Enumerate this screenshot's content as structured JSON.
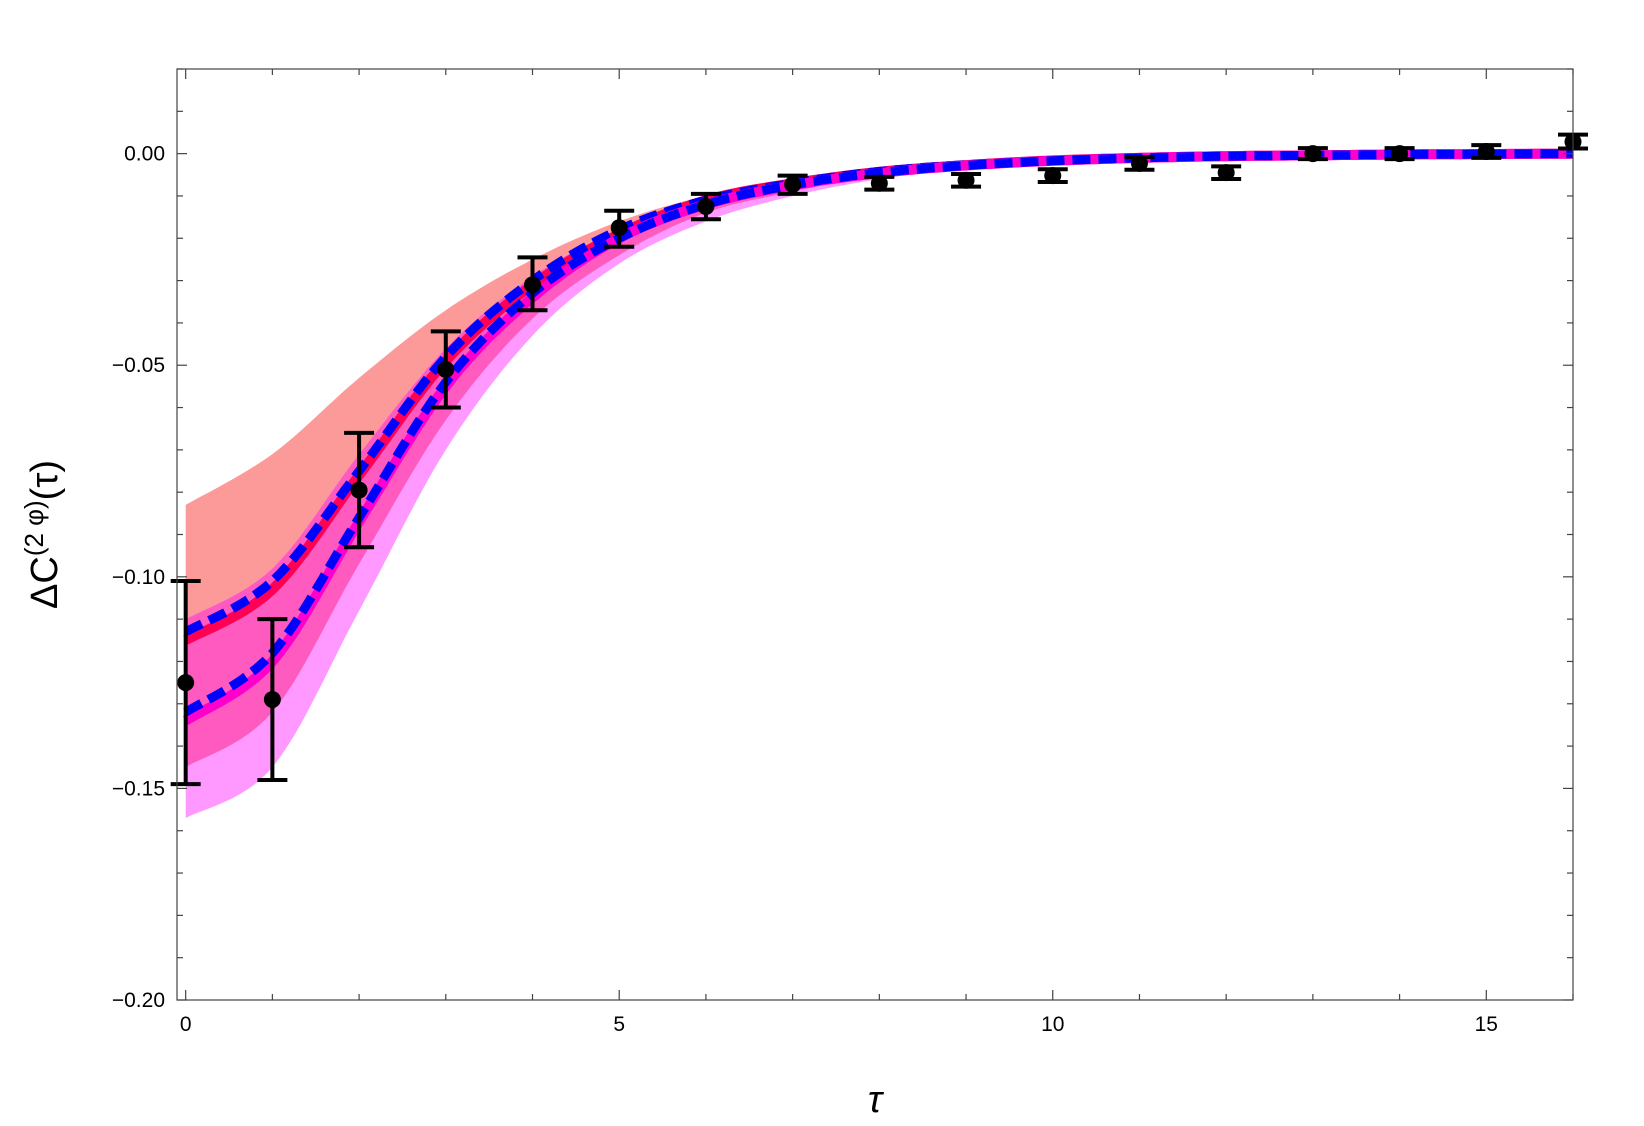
{
  "chart_data": {
    "type": "line",
    "title": "",
    "xlabel": "τ",
    "ylabel": "ΔC(2 φ)(τ)",
    "ylabel_parts": {
      "main": "ΔC",
      "sup": "(2 φ)",
      "tail": "(τ)"
    },
    "xlim": [
      -0.1,
      16
    ],
    "ylim": [
      -0.2,
      0.02
    ],
    "xticks": [
      0,
      5,
      10,
      15
    ],
    "xtick_labels": [
      "0",
      "5",
      "10",
      "15"
    ],
    "yticks": [
      0,
      -0.05,
      -0.1,
      -0.15,
      -0.2
    ],
    "ytick_labels": [
      "0.00",
      "-0.05",
      "-0.10",
      "-0.15",
      "-0.20"
    ],
    "grid": false,
    "legend": "none",
    "curve_x": [
      0,
      1,
      2,
      3,
      4,
      5,
      6,
      7,
      8,
      9,
      10,
      11,
      12,
      13,
      14,
      15,
      16
    ],
    "bands": [
      {
        "color": "#fc9a9a",
        "upper": [
          -0.083,
          -0.071,
          -0.053,
          -0.037,
          -0.025,
          -0.016,
          -0.01,
          -0.0065,
          -0.004,
          -0.0025,
          -0.0015,
          -0.001,
          -0.0006,
          -0.0004,
          -0.0002,
          -0.0001,
          0
        ],
        "lower": [
          -0.11,
          -0.098,
          -0.071,
          -0.046,
          -0.029,
          -0.018,
          -0.011,
          -0.007,
          -0.0045,
          -0.003,
          -0.0018,
          -0.0011,
          -0.0007,
          -0.0004,
          -0.0002,
          -0.0001,
          0
        ]
      },
      {
        "color": "#ff99ff",
        "upper": [
          -0.145,
          -0.132,
          -0.097,
          -0.063,
          -0.039,
          -0.024,
          -0.014,
          -0.009,
          -0.005,
          -0.003,
          -0.002,
          -0.0012,
          -0.0008,
          -0.0005,
          -0.0003,
          -0.0001,
          0
        ],
        "lower": [
          -0.157,
          -0.145,
          -0.108,
          -0.07,
          -0.043,
          -0.026,
          -0.016,
          -0.01,
          -0.006,
          -0.0035,
          -0.0022,
          -0.0013,
          -0.0009,
          -0.0005,
          -0.0003,
          -0.0001,
          0
        ]
      },
      {
        "color": "#ff5ac0",
        "upper": [
          -0.11,
          -0.098,
          -0.071,
          -0.046,
          -0.029,
          -0.018,
          -0.011,
          -0.007,
          -0.0045,
          -0.003,
          -0.0018,
          -0.0011,
          -0.0007,
          -0.0004,
          -0.0002,
          -0.0001,
          0
        ],
        "lower": [
          -0.145,
          -0.132,
          -0.097,
          -0.063,
          -0.039,
          -0.024,
          -0.014,
          -0.009,
          -0.005,
          -0.003,
          -0.002,
          -0.0012,
          -0.0008,
          -0.0005,
          -0.0003,
          -0.0001,
          0
        ]
      }
    ],
    "series": [
      {
        "style": "solid",
        "color": "#ff0055",
        "values": [
          -0.115,
          -0.103,
          -0.076,
          -0.049,
          -0.031,
          -0.019,
          -0.011,
          -0.007,
          -0.0043,
          -0.0027,
          -0.0016,
          -0.001,
          -0.0006,
          -0.0004,
          -0.0002,
          -0.0001,
          0
        ]
      },
      {
        "style": "dashed",
        "color": "#0000ff",
        "values": [
          -0.113,
          -0.101,
          -0.075,
          -0.048,
          -0.03,
          -0.018,
          -0.011,
          -0.007,
          -0.0042,
          -0.0026,
          -0.0016,
          -0.001,
          -0.0006,
          -0.0004,
          -0.0002,
          -0.0001,
          0
        ]
      },
      {
        "style": "solid",
        "color": "#ff00cc",
        "values": [
          -0.134,
          -0.12,
          -0.087,
          -0.055,
          -0.034,
          -0.02,
          -0.012,
          -0.0075,
          -0.0046,
          -0.0028,
          -0.0017,
          -0.001,
          -0.0006,
          -0.0004,
          -0.0002,
          -0.0001,
          0
        ]
      },
      {
        "style": "dashed",
        "color": "#0000ff",
        "values": [
          -0.132,
          -0.118,
          -0.086,
          -0.054,
          -0.033,
          -0.02,
          -0.012,
          -0.0074,
          -0.0045,
          -0.0028,
          -0.0017,
          -0.001,
          -0.0006,
          -0.0004,
          -0.0002,
          -0.0001,
          0
        ]
      }
    ],
    "points": {
      "color": "#000000",
      "x": [
        0,
        1,
        2,
        3,
        4,
        5,
        6,
        7,
        8,
        9,
        10,
        11,
        12,
        13,
        14,
        15,
        16
      ],
      "y": [
        -0.125,
        -0.129,
        -0.0795,
        -0.051,
        -0.031,
        -0.0175,
        -0.0125,
        -0.0073,
        -0.007,
        -0.0063,
        -0.0052,
        -0.0023,
        -0.0045,
        0.0,
        0.0,
        0.0005,
        0.0028
      ],
      "err_low": [
        -0.149,
        -0.148,
        -0.093,
        -0.06,
        -0.037,
        -0.022,
        -0.0155,
        -0.0095,
        -0.0085,
        -0.0078,
        -0.0067,
        -0.0038,
        -0.006,
        -0.0013,
        -0.0013,
        -0.001,
        0.0012
      ],
      "err_high": [
        -0.101,
        -0.11,
        -0.066,
        -0.042,
        -0.0245,
        -0.0135,
        -0.0095,
        -0.0052,
        -0.0055,
        -0.0048,
        -0.0037,
        -0.0008,
        -0.003,
        0.0013,
        0.0013,
        0.002,
        0.0045
      ]
    }
  }
}
